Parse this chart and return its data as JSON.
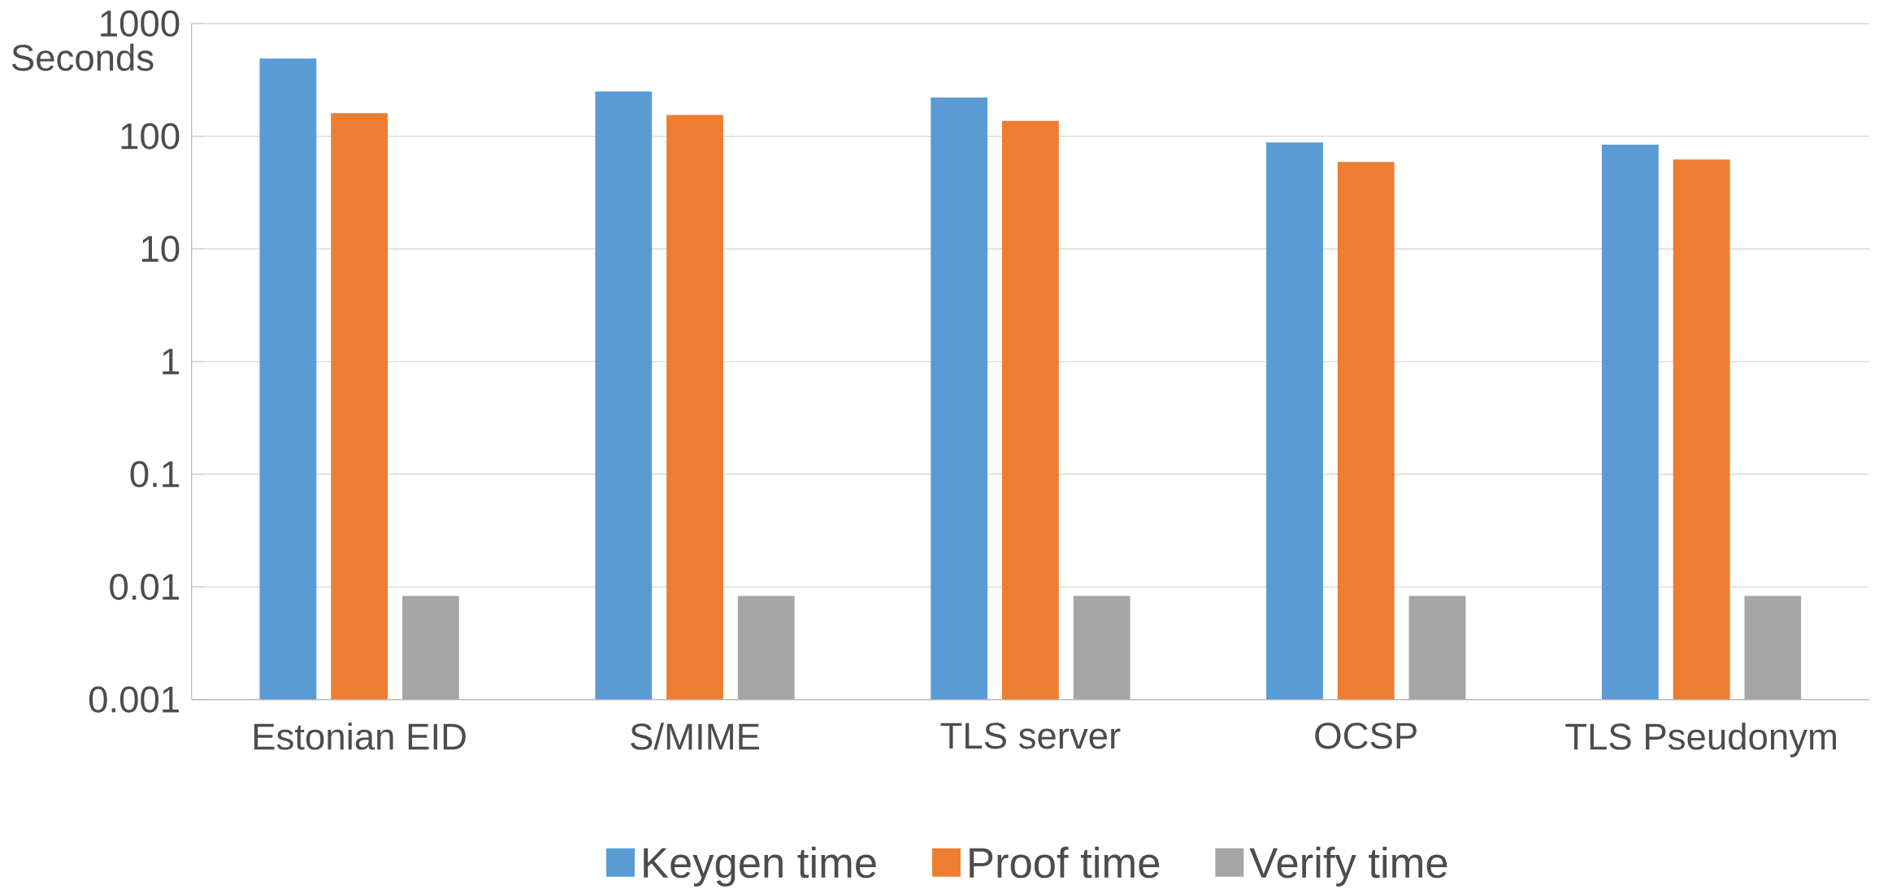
{
  "chart_data": {
    "type": "bar",
    "ylabel": "Seconds",
    "log": "y",
    "categories": [
      "Estonian EID",
      "S/MIME",
      "TLS server",
      "OCSP",
      "TLS Pseudonym"
    ],
    "series": [
      {
        "name": "Keygen time",
        "color": "#5b9bd5",
        "values": [
          490,
          250,
          220,
          88,
          84
        ]
      },
      {
        "name": "Proof time",
        "color": "#ed7d31",
        "values": [
          160,
          154,
          137,
          59,
          62
        ]
      },
      {
        "name": "Verify time",
        "color": "#a5a5a5",
        "values": [
          0.0083,
          0.0083,
          0.0083,
          0.0083,
          0.0083
        ]
      }
    ],
    "ylim": [
      0.001,
      1000
    ],
    "yticks": [
      0.001,
      0.01,
      0.1,
      1,
      10,
      100,
      1000
    ],
    "grid": "y",
    "legend": "bottom"
  }
}
